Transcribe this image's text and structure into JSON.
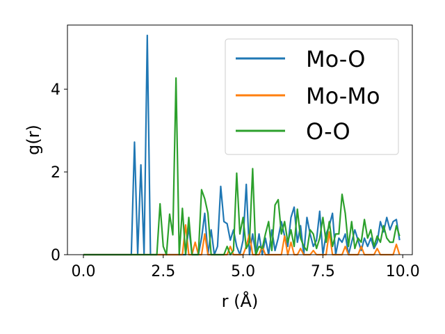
{
  "chart_data": {
    "type": "line",
    "title": "",
    "xlabel": "r (Å)",
    "ylabel": "g(r)",
    "xlim": [
      -0.5,
      10.3
    ],
    "ylim": [
      0,
      5.55
    ],
    "xticks": [
      0.0,
      2.5,
      5.0,
      7.5,
      10.0
    ],
    "xtick_labels": [
      "0.0",
      "2.5",
      "5.0",
      "7.5",
      "10.0"
    ],
    "yticks": [
      0,
      2,
      4
    ],
    "ytick_labels": [
      "0",
      "2",
      "4"
    ],
    "grid": false,
    "legend_position": "top-right",
    "x": [
      0.0,
      0.1,
      0.2,
      0.3,
      0.4,
      0.5,
      0.6,
      0.7,
      0.8,
      0.9,
      1.0,
      1.1,
      1.2,
      1.3,
      1.4,
      1.5,
      1.6,
      1.7,
      1.8,
      1.9,
      2.0,
      2.1,
      2.2,
      2.3,
      2.4,
      2.5,
      2.6,
      2.7,
      2.8,
      2.9,
      3.0,
      3.1,
      3.2,
      3.3,
      3.4,
      3.5,
      3.6,
      3.7,
      3.8,
      3.9,
      4.0,
      4.1,
      4.2,
      4.3,
      4.4,
      4.5,
      4.6,
      4.7,
      4.8,
      4.9,
      5.0,
      5.1,
      5.2,
      5.3,
      5.4,
      5.5,
      5.6,
      5.7,
      5.8,
      5.9,
      6.0,
      6.1,
      6.2,
      6.3,
      6.4,
      6.5,
      6.6,
      6.7,
      6.8,
      6.9,
      7.0,
      7.1,
      7.2,
      7.3,
      7.4,
      7.5,
      7.6,
      7.7,
      7.8,
      7.9,
      8.0,
      8.1,
      8.2,
      8.3,
      8.4,
      8.5,
      8.6,
      8.7,
      8.8,
      8.9,
      9.0,
      9.1,
      9.2,
      9.3,
      9.4,
      9.5,
      9.6,
      9.7,
      9.8,
      9.9
    ],
    "series": [
      {
        "name": "Mo-O",
        "color": "#1f77b4",
        "values": [
          0,
          0,
          0,
          0,
          0,
          0,
          0,
          0,
          0,
          0,
          0,
          0,
          0,
          0,
          0,
          0,
          2.72,
          0,
          2.17,
          0,
          5.3,
          0,
          0,
          0,
          0,
          0,
          0,
          0,
          0,
          0,
          0,
          0,
          0,
          0.67,
          0,
          0,
          0,
          0.4,
          1.0,
          0,
          0.6,
          0,
          0.2,
          1.65,
          0.8,
          0.75,
          0.35,
          0.6,
          0.2,
          0,
          0.35,
          1.7,
          0,
          0.5,
          0,
          0.5,
          0,
          0.4,
          0,
          0.6,
          0.1,
          0.4,
          0.8,
          0.45,
          0.2,
          0.9,
          1.15,
          0.3,
          0.7,
          0,
          0.9,
          0.5,
          0.2,
          0.35,
          1.05,
          0,
          0.5,
          0.7,
          1.0,
          0,
          0.4,
          0.3,
          0.5,
          0,
          0.3,
          0.6,
          0.35,
          0.1,
          0.4,
          0.2,
          0.4,
          0.15,
          0.3,
          0.8,
          0.55,
          0.9,
          0.6,
          0.8,
          0.85,
          0.35
        ]
      },
      {
        "name": "Mo-Mo",
        "color": "#ff7f0e",
        "values": [
          0,
          0,
          0,
          0,
          0,
          0,
          0,
          0,
          0,
          0,
          0,
          0,
          0,
          0,
          0,
          0,
          0,
          0,
          0,
          0,
          0,
          0,
          0,
          0,
          0,
          0,
          0,
          0,
          0,
          0,
          0,
          0,
          0.72,
          0,
          0,
          0.3,
          0,
          0,
          0.5,
          0,
          0,
          0,
          0,
          0,
          0,
          0,
          0.2,
          0,
          0,
          0,
          0,
          0.2,
          0.5,
          0,
          0,
          0,
          0.2,
          0,
          0,
          0,
          0,
          0,
          0,
          0.45,
          0,
          0.3,
          0,
          0,
          0.15,
          0,
          0,
          0,
          0.1,
          0,
          0,
          0,
          0,
          0.55,
          0,
          0,
          0,
          0,
          0.2,
          0,
          0,
          0,
          0,
          0.2,
          0,
          0,
          0,
          0,
          0.15,
          0,
          0,
          0,
          0,
          0,
          0.25,
          0
        ]
      },
      {
        "name": "O-O",
        "color": "#2ca02c",
        "values": [
          0,
          0,
          0,
          0,
          0,
          0,
          0,
          0,
          0,
          0,
          0,
          0,
          0,
          0,
          0,
          0,
          0,
          0,
          0,
          0,
          0,
          0,
          0,
          0,
          1.23,
          0.2,
          0,
          0.98,
          0.48,
          4.27,
          0,
          1.12,
          0,
          0.9,
          0,
          0,
          0,
          1.57,
          1.35,
          1.0,
          0,
          0,
          0,
          0,
          0,
          0.2,
          0,
          0.1,
          1.97,
          0.5,
          0.9,
          0.15,
          0.3,
          2.08,
          0,
          0.2,
          0.15,
          0.5,
          0.8,
          0.1,
          1.2,
          1.33,
          0.5,
          0.8,
          0.3,
          0.6,
          0.2,
          1.1,
          0.4,
          0.2,
          0.1,
          0.6,
          0.5,
          0.15,
          0.4,
          0.9,
          0.3,
          0.8,
          0.2,
          0.5,
          0.5,
          1.46,
          1.0,
          0.2,
          0.8,
          0.15,
          0.4,
          0.3,
          0.85,
          0.4,
          0.6,
          0.2,
          0.45,
          0.3,
          0.7,
          0.4,
          0.3,
          0.3,
          0.7,
          0.45
        ]
      }
    ]
  }
}
